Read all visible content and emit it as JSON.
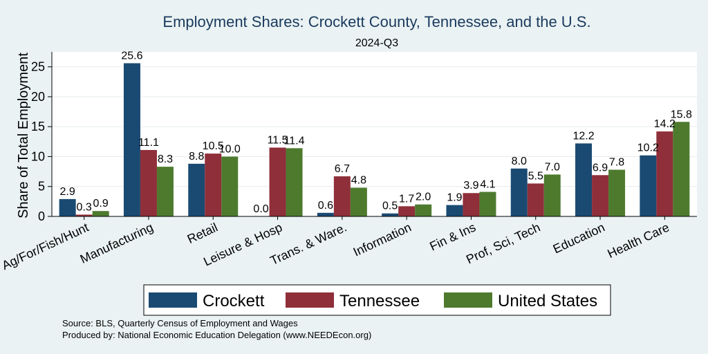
{
  "chart_data": {
    "type": "bar",
    "title": "Employment Shares: Crockett County, Tennessee, and the U.S.",
    "subtitle": "2024-Q3",
    "xlabel": "",
    "ylabel": "Share of Total Employment",
    "ylim": [
      0,
      27.5
    ],
    "yticks": [
      0,
      5,
      10,
      15,
      20,
      25
    ],
    "grid": true,
    "legend_position": "bottom",
    "categories": [
      "Ag/For/Fish/Hunt",
      "Manufacturing",
      "Retail",
      "Leisure & Hosp",
      "Trans. & Ware.",
      "Information",
      "Fin & Ins",
      "Prof, Sci, Tech",
      "Education",
      "Health Care"
    ],
    "series": [
      {
        "name": "Crockett",
        "color": "#1a4a72",
        "values": [
          2.9,
          25.6,
          8.8,
          0.0,
          0.6,
          0.5,
          1.9,
          8.0,
          12.2,
          10.2
        ]
      },
      {
        "name": "Tennessee",
        "color": "#8f2f3a",
        "values": [
          0.3,
          11.1,
          10.5,
          11.5,
          6.7,
          1.7,
          3.9,
          5.5,
          6.9,
          14.2
        ]
      },
      {
        "name": "United States",
        "color": "#4e7a2e",
        "values": [
          0.9,
          8.3,
          10.0,
          11.4,
          4.8,
          2.0,
          4.1,
          7.0,
          7.8,
          15.8
        ]
      }
    ]
  },
  "source_lines": [
    "Source: BLS, Quarterly Census of Employment and Wages",
    "Produced by: National Economic Education Delegation (www.NEEDEcon.org)"
  ]
}
